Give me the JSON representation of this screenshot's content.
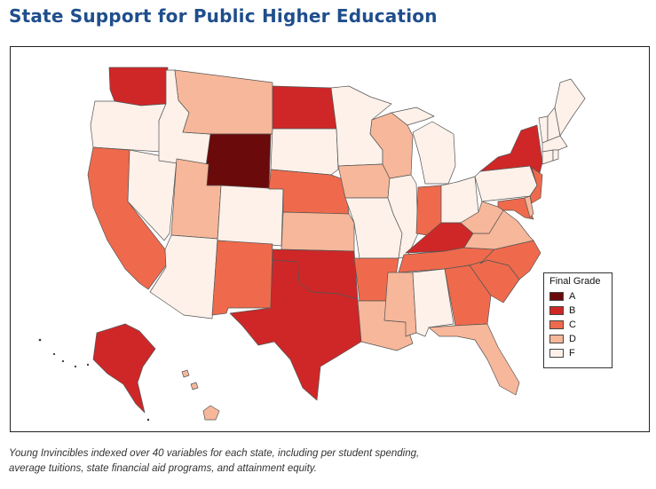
{
  "title": "State Support for Public Higher Education",
  "legend": {
    "title": "Final Grade",
    "items": [
      {
        "grade": "A",
        "color": "#6b0a0a"
      },
      {
        "grade": "B",
        "color": "#cf2727"
      },
      {
        "grade": "C",
        "color": "#ef6a4c"
      },
      {
        "grade": "D",
        "color": "#f7b79a"
      },
      {
        "grade": "F",
        "color": "#fdf1ea"
      }
    ]
  },
  "caption": {
    "line1": "Young Invincibles indexed over 40 variables for each state, including per student spending,",
    "line2": "average tuitions, state financial aid programs, and attainment equity."
  },
  "states": {
    "WA": "B",
    "OR": "F",
    "CA": "C",
    "NV": "F",
    "ID": "F",
    "MT": "D",
    "WY": "A",
    "UT": "D",
    "AZ": "F",
    "CO": "F",
    "NM": "C",
    "ND": "B",
    "SD": "F",
    "NE": "C",
    "KS": "D",
    "OK": "B",
    "TX": "B",
    "MN": "F",
    "IA": "D",
    "MO": "F",
    "AR": "C",
    "LA": "D",
    "WI": "D",
    "IL": "F",
    "MI": "F",
    "IN": "C",
    "OH": "F",
    "KY": "B",
    "TN": "C",
    "MS": "D",
    "AL": "F",
    "GA": "C",
    "FL": "D",
    "SC": "C",
    "NC": "C",
    "VA": "D",
    "WV": "D",
    "PA": "F",
    "NY": "B",
    "NJ": "C",
    "MD": "C",
    "DE": "D",
    "ME": "F",
    "NH": "F",
    "VT": "F",
    "MA": "F",
    "CT": "F",
    "RI": "F",
    "AK": "B",
    "HI": "D"
  }
}
